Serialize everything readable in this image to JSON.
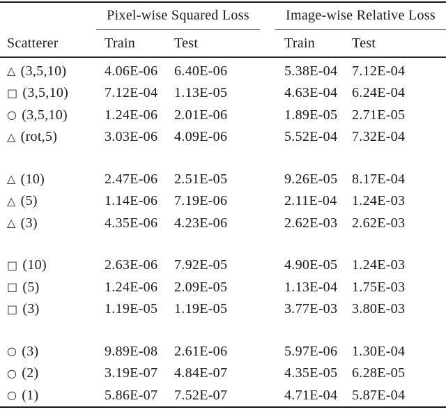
{
  "table": {
    "colors": {
      "text": "#1a1a1a",
      "rule_heavy": "#1a1a1a",
      "rule_light": "#666666",
      "background": "#ffffff"
    },
    "title_groups": [
      {
        "label": "Pixel-wise Squared Loss"
      },
      {
        "label": "Image-wise Relative Loss"
      }
    ],
    "headers": {
      "scatterer": "Scatterer",
      "pixel_train": "Train",
      "pixel_test": "Test",
      "image_train": "Train",
      "image_test": "Test"
    },
    "groups": [
      {
        "rows": [
          {
            "symbol": "△",
            "label": "(3,5,10)",
            "pixel_train": "4.06E-06",
            "pixel_test": "6.40E-06",
            "image_train": "5.38E-04",
            "image_test": "7.12E-04"
          },
          {
            "symbol": "□",
            "label": "(3,5,10)",
            "pixel_train": "7.12E-04",
            "pixel_test": "1.13E-05",
            "image_train": "4.63E-04",
            "image_test": "6.24E-04"
          },
          {
            "symbol": "○",
            "label": "(3,5,10)",
            "pixel_train": "1.24E-06",
            "pixel_test": "2.01E-06",
            "image_train": "1.89E-05",
            "image_test": "2.71E-05"
          },
          {
            "symbol": "△",
            "label": "(rot,5)",
            "pixel_train": "3.03E-06",
            "pixel_test": "4.09E-06",
            "image_train": "5.52E-04",
            "image_test": "7.32E-04"
          }
        ]
      },
      {
        "rows": [
          {
            "symbol": "△",
            "label": "(10)",
            "pixel_train": "2.47E-06",
            "pixel_test": "2.51E-05",
            "image_train": "9.26E-05",
            "image_test": "8.17E-04"
          },
          {
            "symbol": "△",
            "label": "(5)",
            "pixel_train": "1.14E-06",
            "pixel_test": "7.19E-06",
            "image_train": "2.11E-04",
            "image_test": "1.24E-03"
          },
          {
            "symbol": "△",
            "label": "(3)",
            "pixel_train": "4.35E-06",
            "pixel_test": "4.23E-06",
            "image_train": "2.62E-03",
            "image_test": "2.62E-03"
          }
        ]
      },
      {
        "rows": [
          {
            "symbol": "□",
            "label": "(10)",
            "pixel_train": "2.63E-06",
            "pixel_test": "7.92E-05",
            "image_train": "4.90E-05",
            "image_test": "1.24E-03"
          },
          {
            "symbol": "□",
            "label": "(5)",
            "pixel_train": "1.24E-06",
            "pixel_test": "2.09E-05",
            "image_train": "1.13E-04",
            "image_test": "1.75E-03"
          },
          {
            "symbol": "□",
            "label": "(3)",
            "pixel_train": "1.19E-05",
            "pixel_test": "1.19E-05",
            "image_train": "3.77E-03",
            "image_test": "3.80E-03"
          }
        ]
      },
      {
        "rows": [
          {
            "symbol": "○",
            "label": "(3)",
            "pixel_train": "9.89E-08",
            "pixel_test": "2.61E-06",
            "image_train": "5.97E-06",
            "image_test": "1.30E-04"
          },
          {
            "symbol": "○",
            "label": "(2)",
            "pixel_train": "3.19E-07",
            "pixel_test": "4.84E-07",
            "image_train": "4.35E-05",
            "image_test": "6.28E-05"
          },
          {
            "symbol": "○",
            "label": "(1)",
            "pixel_train": "5.86E-07",
            "pixel_test": "7.52E-07",
            "image_train": "4.71E-04",
            "image_test": "5.87E-04"
          }
        ]
      }
    ]
  }
}
